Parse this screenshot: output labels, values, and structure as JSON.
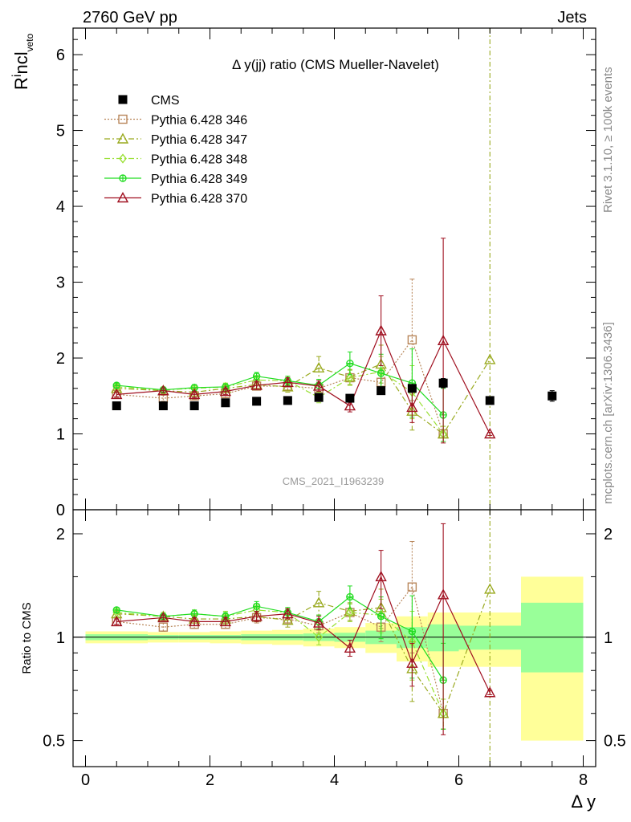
{
  "header": {
    "left": "2760 GeV pp",
    "right": "Jets"
  },
  "side_labels": {
    "rivet": "Rivet 3.1.10, ≥ 100k events",
    "source": "mcplots.cern.ch [arXiv:1306.3436]"
  },
  "chart_data": [
    {
      "type": "line",
      "title": "Δ y(jj) ratio (CMS Mueller-Navelet)",
      "watermark": "CMS_2021_I1963239",
      "xlabel": "Δ y",
      "ylabel": "R^incl_veto",
      "xlim": [
        -0.2,
        8.2
      ],
      "ylim": [
        0,
        6.35
      ],
      "yticks": [
        0,
        1,
        2,
        3,
        4,
        5,
        6
      ],
      "legend_placement": "top-left",
      "series": [
        {
          "name": "CMS",
          "color": "#000000",
          "marker": "filled-square",
          "style": "none",
          "x": [
            0.5,
            1.25,
            1.75,
            2.25,
            2.75,
            3.25,
            3.75,
            4.25,
            4.75,
            5.25,
            5.75,
            6.5,
            7.5
          ],
          "y": [
            1.37,
            1.37,
            1.37,
            1.41,
            1.43,
            1.44,
            1.48,
            1.47,
            1.57,
            1.6,
            1.67,
            1.44,
            1.5
          ],
          "err": [
            0.02,
            0.02,
            0.02,
            0.02,
            0.02,
            0.02,
            0.03,
            0.03,
            0.04,
            0.05,
            0.06,
            0.05,
            0.07
          ]
        },
        {
          "name": "Pythia 6.428 346",
          "color": "#b8865a",
          "marker": "open-square",
          "style": "dotted",
          "x": [
            0.5,
            1.25,
            1.75,
            2.25,
            2.75,
            3.25,
            3.75,
            4.25,
            4.75,
            5.25,
            5.75
          ],
          "y": [
            1.52,
            1.47,
            1.5,
            1.53,
            1.63,
            1.63,
            1.6,
            1.74,
            1.68,
            2.24,
            1.0
          ],
          "err": [
            0.04,
            0.04,
            0.04,
            0.05,
            0.05,
            0.06,
            0.08,
            0.1,
            0.15,
            0.8,
            0.1
          ]
        },
        {
          "name": "Pythia 6.428 347",
          "color": "#9aaa20",
          "marker": "open-triangle",
          "style": "dashdot",
          "x": [
            0.5,
            1.25,
            1.75,
            2.25,
            2.75,
            3.25,
            3.75,
            4.25,
            4.75,
            5.25,
            5.75,
            6.5
          ],
          "y": [
            1.6,
            1.57,
            1.55,
            1.6,
            1.65,
            1.62,
            1.87,
            1.75,
            1.92,
            1.3,
            1.0,
            1.98
          ],
          "err": [
            0.04,
            0.04,
            0.05,
            0.05,
            0.06,
            0.07,
            0.15,
            0.1,
            0.25,
            0.25,
            0.1,
            5.0
          ]
        },
        {
          "name": "Pythia 6.428 348",
          "color": "#99e033",
          "marker": "open-diamond",
          "style": "dashdot",
          "x": [
            0.5,
            1.25,
            1.75,
            2.25,
            2.75,
            3.25,
            3.75,
            4.25,
            4.75,
            5.25,
            5.75
          ],
          "y": [
            1.62,
            1.58,
            1.6,
            1.62,
            1.71,
            1.7,
            1.48,
            1.74,
            1.82,
            1.55,
            1.0
          ],
          "err": [
            0.04,
            0.04,
            0.04,
            0.05,
            0.06,
            0.06,
            0.07,
            0.1,
            0.2,
            0.35,
            0.1
          ]
        },
        {
          "name": "Pythia 6.428 349",
          "color": "#22dd22",
          "marker": "open-circle-cross",
          "style": "solid",
          "x": [
            0.5,
            1.25,
            1.75,
            2.25,
            2.75,
            3.25,
            3.75,
            4.25,
            4.75,
            5.25,
            5.75
          ],
          "y": [
            1.64,
            1.58,
            1.61,
            1.62,
            1.76,
            1.7,
            1.64,
            1.93,
            1.8,
            1.67,
            1.25
          ],
          "err": [
            0.03,
            0.03,
            0.04,
            0.04,
            0.05,
            0.06,
            0.08,
            0.15,
            0.25,
            0.45,
            0.35
          ]
        },
        {
          "name": "Pythia 6.428 370",
          "color": "#a01020",
          "marker": "open-triangle",
          "style": "solid",
          "x": [
            0.5,
            1.25,
            1.75,
            2.25,
            2.75,
            3.25,
            3.75,
            4.25,
            4.75,
            5.25,
            5.75,
            6.5
          ],
          "y": [
            1.52,
            1.57,
            1.52,
            1.56,
            1.64,
            1.68,
            1.63,
            1.37,
            2.36,
            1.35,
            2.23,
            1.0
          ],
          "err": [
            0.03,
            0.03,
            0.04,
            0.04,
            0.05,
            0.06,
            0.07,
            0.08,
            0.46,
            0.2,
            1.35,
            0.02
          ]
        }
      ]
    },
    {
      "type": "line",
      "xlabel": "Δ y",
      "ylabel": "Ratio to CMS",
      "xlim": [
        -0.2,
        8.2
      ],
      "ylim": [
        0.42,
        2.35
      ],
      "log_y": true,
      "ytick_labels": [
        "0.5",
        "1",
        "2"
      ],
      "xtick_labels": [
        "0",
        "2",
        "4",
        "6",
        "8"
      ],
      "bands": [
        {
          "x0": 0.0,
          "x1": 1.0,
          "inner": [
            0.98,
            1.02
          ],
          "outer": [
            0.96,
            1.04
          ]
        },
        {
          "x0": 1.0,
          "x1": 1.5,
          "inner": [
            0.985,
            1.015
          ],
          "outer": [
            0.965,
            1.035
          ]
        },
        {
          "x0": 1.5,
          "x1": 2.0,
          "inner": [
            0.985,
            1.015
          ],
          "outer": [
            0.965,
            1.035
          ]
        },
        {
          "x0": 2.0,
          "x1": 2.5,
          "inner": [
            0.985,
            1.015
          ],
          "outer": [
            0.96,
            1.04
          ]
        },
        {
          "x0": 2.5,
          "x1": 3.0,
          "inner": [
            0.98,
            1.02
          ],
          "outer": [
            0.955,
            1.045
          ]
        },
        {
          "x0": 3.0,
          "x1": 3.5,
          "inner": [
            0.98,
            1.02
          ],
          "outer": [
            0.95,
            1.05
          ]
        },
        {
          "x0": 3.5,
          "x1": 4.0,
          "inner": [
            0.975,
            1.025
          ],
          "outer": [
            0.94,
            1.06
          ]
        },
        {
          "x0": 4.0,
          "x1": 4.5,
          "inner": [
            0.97,
            1.03
          ],
          "outer": [
            0.93,
            1.07
          ]
        },
        {
          "x0": 4.5,
          "x1": 5.0,
          "inner": [
            0.955,
            1.045
          ],
          "outer": [
            0.9,
            1.1
          ]
        },
        {
          "x0": 5.0,
          "x1": 5.5,
          "inner": [
            0.93,
            1.07
          ],
          "outer": [
            0.85,
            1.15
          ]
        },
        {
          "x0": 5.5,
          "x1": 6.0,
          "inner": [
            0.91,
            1.09
          ],
          "outer": [
            0.82,
            1.18
          ]
        },
        {
          "x0": 6.0,
          "x1": 7.0,
          "inner": [
            0.92,
            1.08
          ],
          "outer": [
            0.82,
            1.18
          ]
        },
        {
          "x0": 7.0,
          "x1": 8.0,
          "inner": [
            0.79,
            1.26
          ],
          "outer": [
            0.5,
            1.5
          ]
        }
      ],
      "series": [
        {
          "name": "Pythia 6.428 346",
          "x": [
            0.5,
            1.25,
            1.75,
            2.25,
            2.75,
            3.25,
            3.75,
            4.25,
            4.75,
            5.25,
            5.75
          ],
          "y": [
            1.11,
            1.07,
            1.09,
            1.09,
            1.14,
            1.13,
            1.08,
            1.18,
            1.07,
            1.4,
            0.6
          ],
          "err": [
            0.03,
            0.03,
            0.03,
            0.03,
            0.04,
            0.04,
            0.05,
            0.07,
            0.1,
            0.5,
            0.06
          ]
        },
        {
          "name": "Pythia 6.428 347",
          "x": [
            0.5,
            1.25,
            1.75,
            2.25,
            2.75,
            3.25,
            3.75,
            4.25,
            4.75,
            5.25,
            5.75,
            6.5
          ],
          "y": [
            1.17,
            1.15,
            1.13,
            1.13,
            1.15,
            1.12,
            1.26,
            1.19,
            1.22,
            0.81,
            0.6,
            1.38
          ],
          "err": [
            0.03,
            0.03,
            0.03,
            0.04,
            0.04,
            0.05,
            0.1,
            0.07,
            0.16,
            0.16,
            0.06,
            2.0
          ]
        },
        {
          "name": "Pythia 6.428 348",
          "x": [
            0.5,
            1.25,
            1.75,
            2.25,
            2.75,
            3.25,
            3.75,
            4.25,
            4.75,
            5.25,
            5.75
          ],
          "y": [
            1.18,
            1.15,
            1.17,
            1.15,
            1.2,
            1.18,
            1.0,
            1.18,
            1.16,
            0.97,
            0.6
          ],
          "err": [
            0.03,
            0.03,
            0.03,
            0.04,
            0.04,
            0.04,
            0.05,
            0.07,
            0.13,
            0.22,
            0.06
          ]
        },
        {
          "name": "Pythia 6.428 349",
          "x": [
            0.5,
            1.25,
            1.75,
            2.25,
            2.75,
            3.25,
            3.75,
            4.25,
            4.75,
            5.25,
            5.75
          ],
          "y": [
            1.2,
            1.15,
            1.17,
            1.15,
            1.23,
            1.18,
            1.11,
            1.31,
            1.15,
            1.04,
            0.75
          ],
          "err": [
            0.02,
            0.02,
            0.03,
            0.03,
            0.04,
            0.04,
            0.05,
            0.1,
            0.16,
            0.28,
            0.21
          ]
        },
        {
          "name": "Pythia 6.428 370",
          "x": [
            0.5,
            1.25,
            1.75,
            2.25,
            2.75,
            3.25,
            3.75,
            4.25,
            4.75,
            5.25,
            5.75,
            6.5
          ],
          "y": [
            1.11,
            1.14,
            1.11,
            1.11,
            1.15,
            1.17,
            1.1,
            0.93,
            1.5,
            0.84,
            1.33,
            0.69
          ],
          "err": [
            0.02,
            0.02,
            0.03,
            0.03,
            0.04,
            0.04,
            0.05,
            0.05,
            0.29,
            0.12,
            0.81,
            0.01
          ]
        }
      ]
    }
  ]
}
